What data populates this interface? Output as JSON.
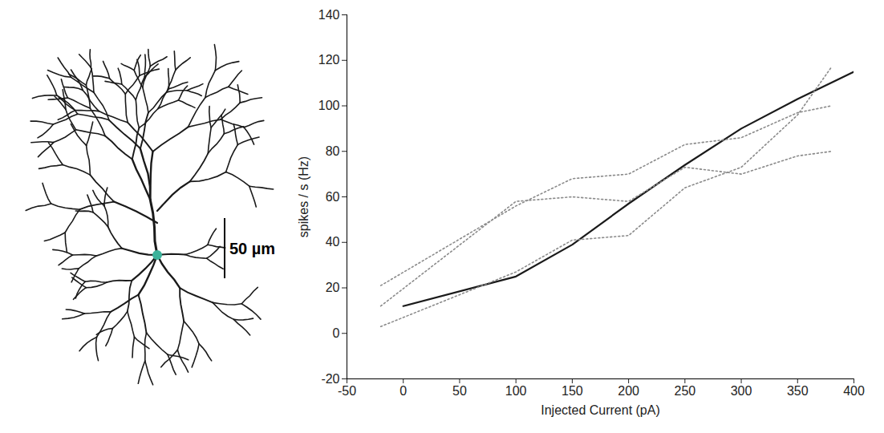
{
  "morphology": {
    "scale_bar": {
      "value": 50,
      "label": "50 µm"
    }
  },
  "chart_data": {
    "type": "line",
    "x_label": "Injected Current (pA)",
    "y_label": "spikes / s (Hz)",
    "xlim": [
      -50,
      400
    ],
    "xticks": [
      -50,
      0,
      50,
      100,
      150,
      200,
      250,
      300,
      350,
      400
    ],
    "ylim": [
      -20,
      140
    ],
    "yticks": [
      -20,
      0,
      20,
      40,
      60,
      80,
      100,
      120,
      140
    ],
    "grid": false,
    "series": [
      {
        "color": "#1a1a1a",
        "line_style": "solid",
        "x": [
          0,
          100,
          150,
          200,
          250,
          300,
          350,
          400
        ],
        "values": [
          12,
          25,
          39,
          57,
          74,
          90,
          103,
          115
        ]
      },
      {
        "color": "#8a8a8a",
        "line_style": "dotted",
        "x": [
          -20,
          100,
          150,
          200,
          250,
          300,
          350,
          380
        ],
        "values": [
          21,
          56,
          68,
          70,
          83,
          86,
          97,
          100
        ]
      },
      {
        "color": "#8a8a8a",
        "line_style": "dotted",
        "x": [
          -20,
          100,
          150,
          200,
          250,
          300,
          350,
          380
        ],
        "values": [
          12,
          58,
          60,
          58,
          73,
          70,
          78,
          80
        ]
      },
      {
        "color": "#8a8a8a",
        "line_style": "dotted",
        "x": [
          -20,
          100,
          150,
          200,
          250,
          300,
          350,
          380
        ],
        "values": [
          3,
          27,
          41,
          43,
          64,
          73,
          96,
          117
        ]
      }
    ]
  }
}
